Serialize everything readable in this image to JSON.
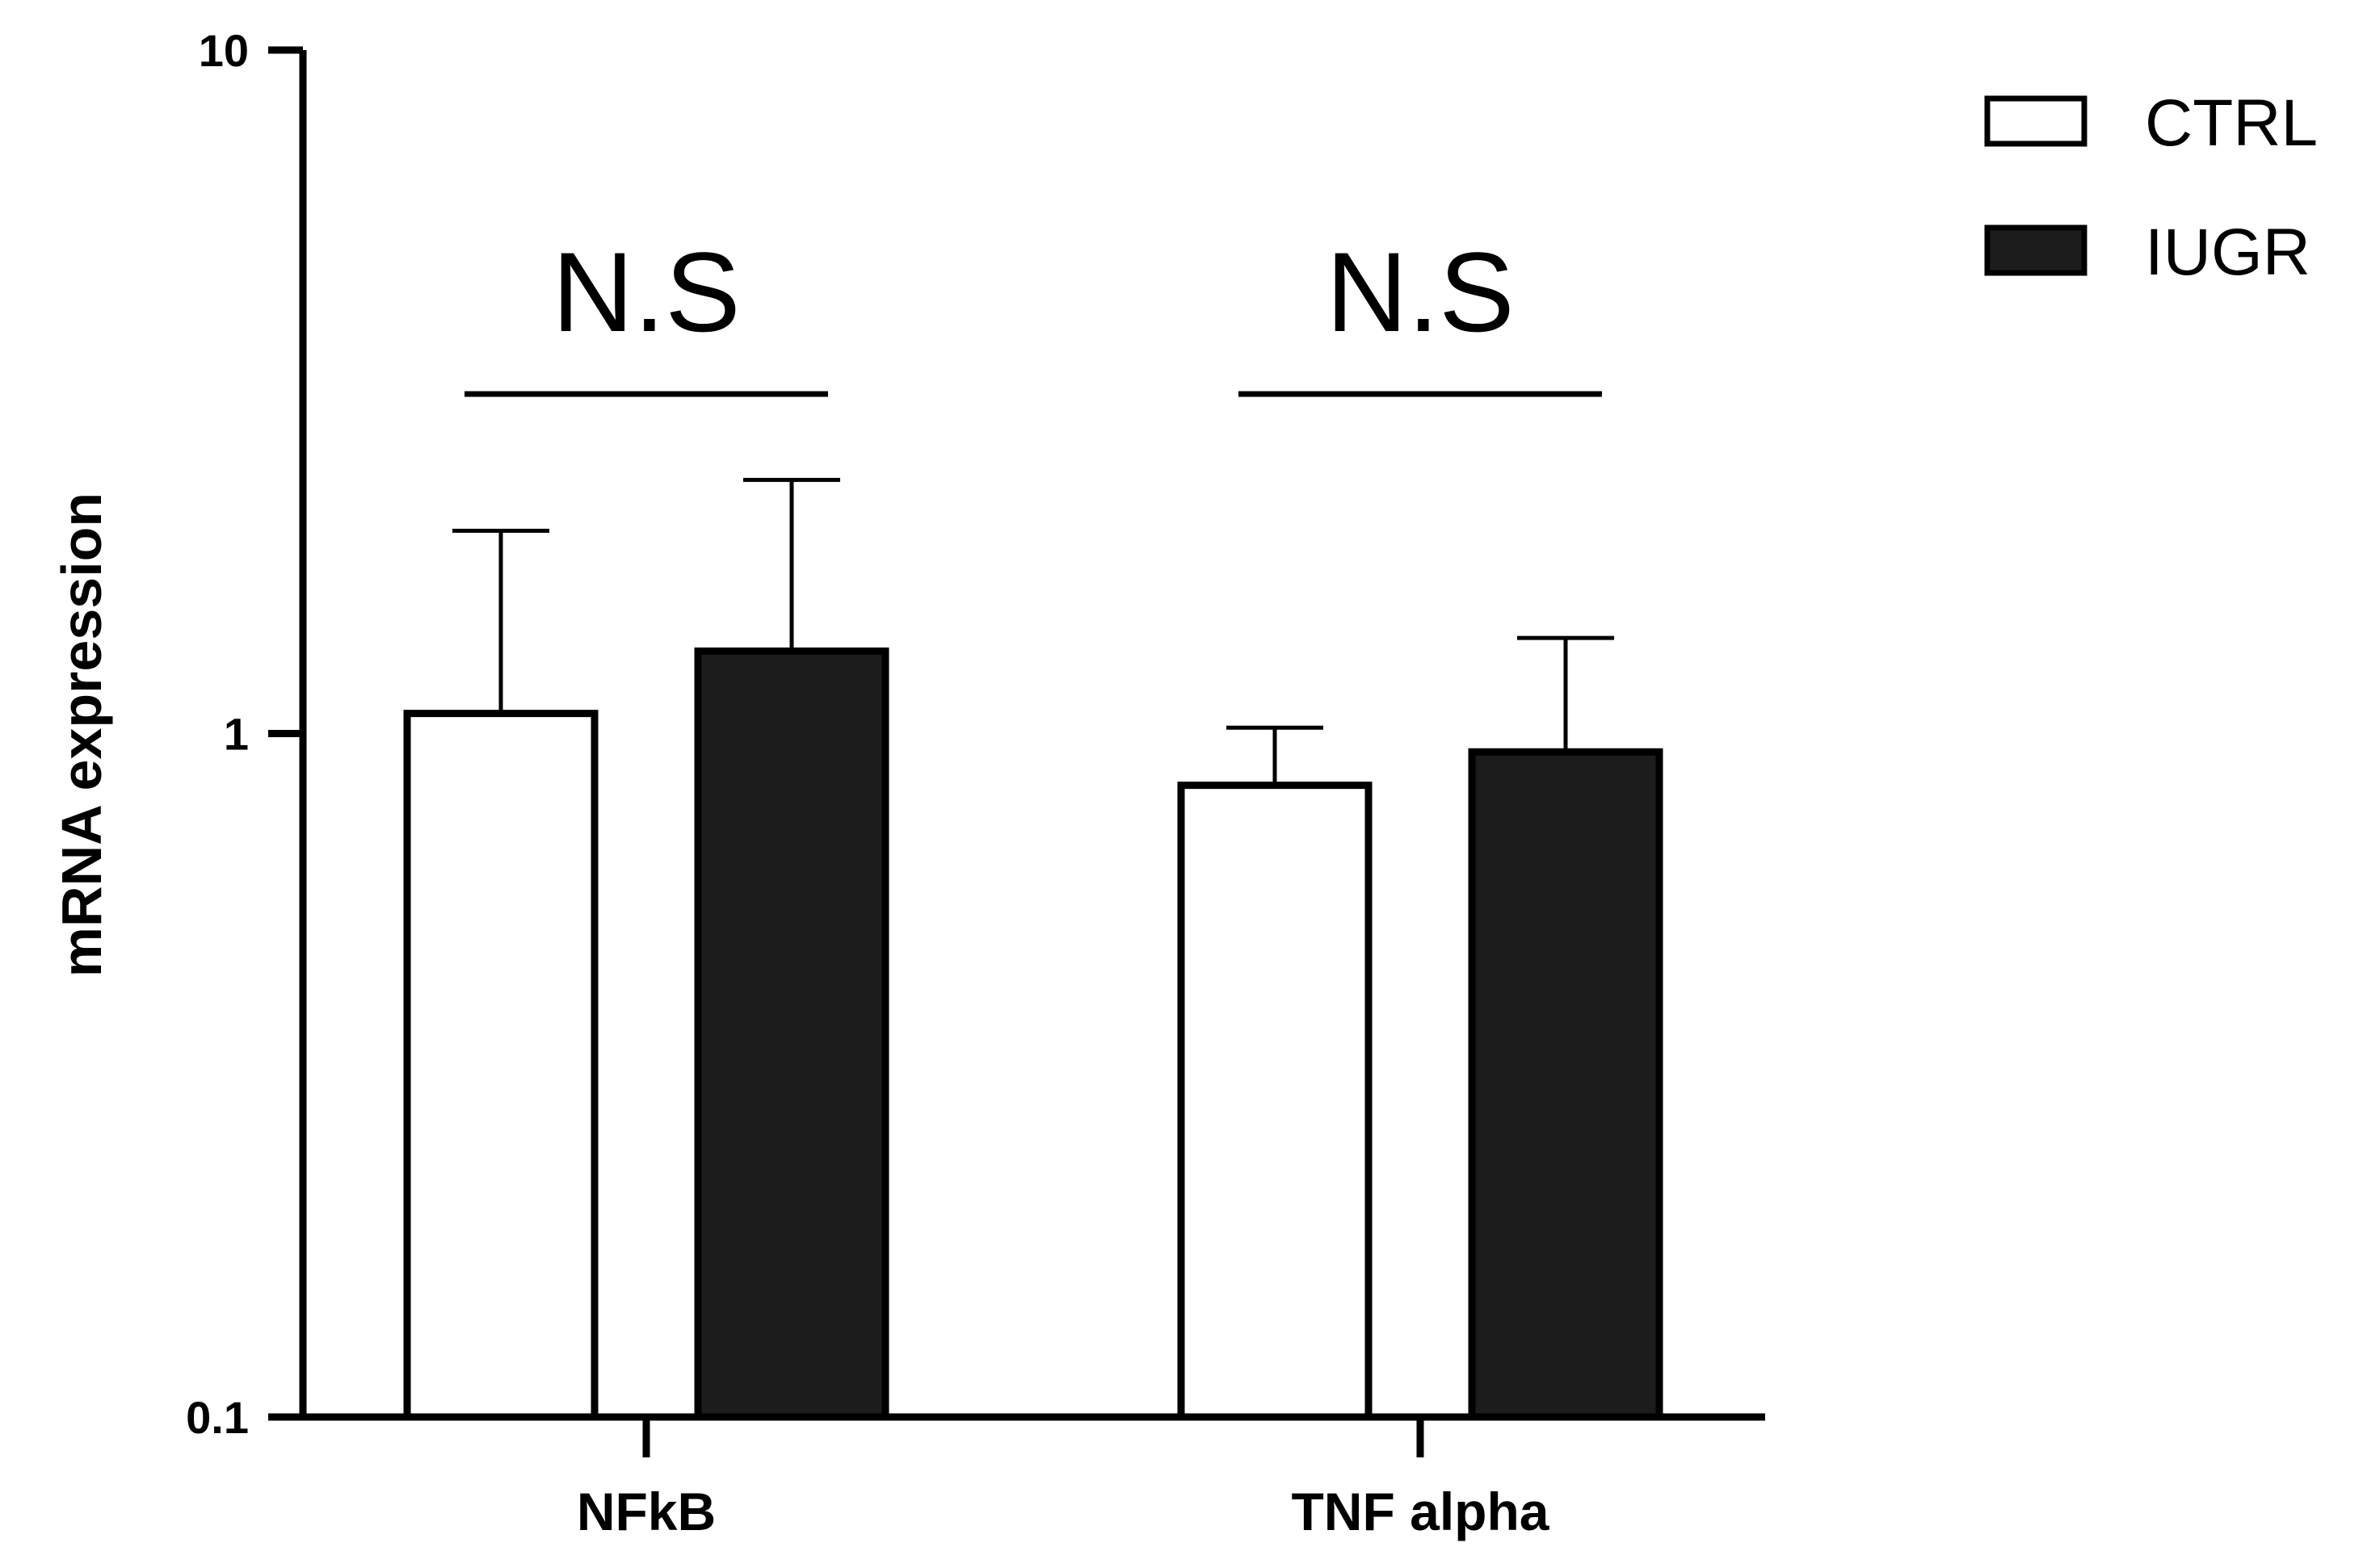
{
  "chart_data": {
    "type": "bar",
    "yscale": "log",
    "ylim": [
      0.1,
      10
    ],
    "yticks": [
      0.1,
      1,
      10
    ],
    "ytick_labels": [
      "0.1",
      "1",
      "10"
    ],
    "ylabel": "mRNA expression",
    "xlabel": "",
    "title": "",
    "categories": [
      "NFkB",
      "TNF alpha"
    ],
    "series": [
      {
        "name": "CTRL",
        "values": [
          1.07,
          0.84
        ],
        "error_upper": [
          1.98,
          1.02
        ],
        "fill": "#ffffff"
      },
      {
        "name": "IUGR",
        "values": [
          1.32,
          0.94
        ],
        "error_upper": [
          2.35,
          1.38
        ],
        "fill": "#1c1c1c"
      }
    ],
    "annotations": [
      {
        "category": "NFkB",
        "text": "N.S"
      },
      {
        "category": "TNF alpha",
        "text": "N.S"
      }
    ],
    "legend": "top-right",
    "grid": false
  },
  "colors": {
    "axis": "#000000",
    "ctrl_fill": "#ffffff",
    "iugr_fill": "#1c1c1c"
  }
}
